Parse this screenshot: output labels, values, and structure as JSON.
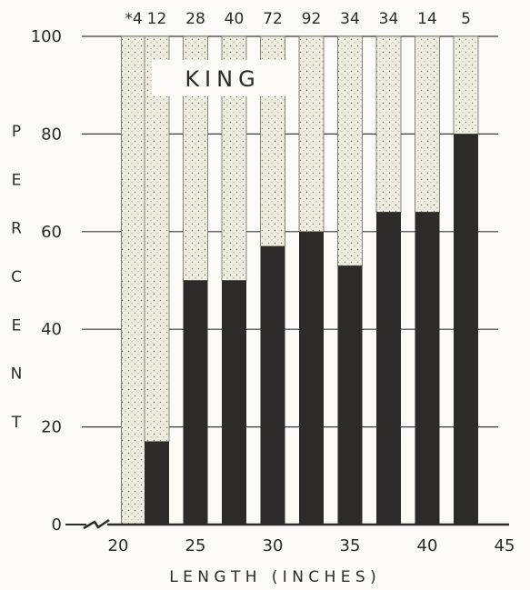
{
  "chart_data": {
    "type": "bar",
    "stacked": true,
    "title": "KING",
    "xlabel": "L E N G T H   ( I N C H E S )",
    "ylabel": "P E R C E N T",
    "xlim": [
      20,
      45
    ],
    "ylim": [
      0,
      100
    ],
    "x_ticks": [
      20,
      25,
      30,
      35,
      40,
      45
    ],
    "y_ticks": [
      0,
      20,
      40,
      60,
      80,
      100
    ],
    "grid": "horizontal",
    "categories": [
      21,
      22.5,
      25,
      27.5,
      30,
      32.5,
      35,
      37.5,
      40,
      42.5
    ],
    "sample_sizes": [
      "*4",
      "12",
      "28",
      "40",
      "72",
      "92",
      "34",
      "34",
      "14",
      "5"
    ],
    "series": [
      {
        "values": [
          0,
          17,
          50,
          50,
          57,
          60,
          53,
          64,
          64,
          80
        ],
        "color": "#2d2b29"
      },
      {
        "values": [
          100,
          83,
          50,
          50,
          43,
          40,
          47,
          36,
          36,
          20
        ],
        "color": "#efece0"
      }
    ]
  }
}
